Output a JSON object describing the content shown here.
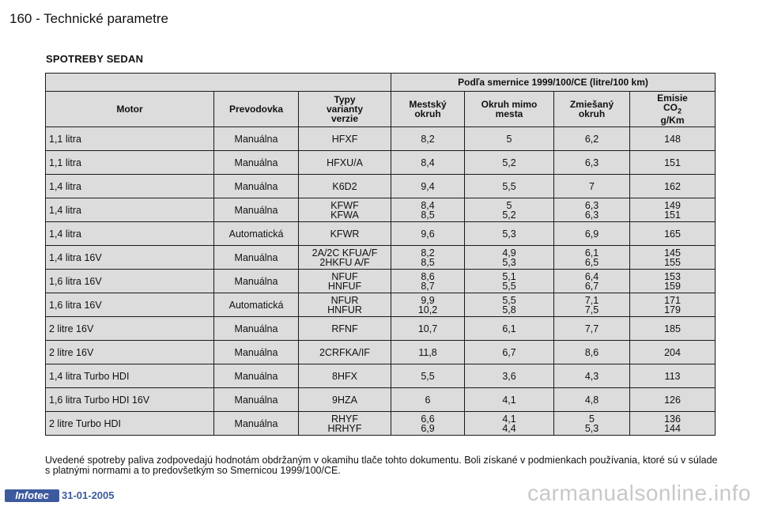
{
  "header": {
    "page": "160 - Technické parametre"
  },
  "section_title": "SPOTREBY SEDAN",
  "table": {
    "directive": "Podľa smernice 1999/100/CE (litre/100 km)",
    "columns": {
      "motor": "Motor",
      "gearbox": "Prevodovka",
      "variants": [
        "Typy",
        "varianty",
        "verzie"
      ],
      "urban": [
        "Mestský",
        "okruh"
      ],
      "extra_urban": [
        "Okruh mimo",
        "mesta"
      ],
      "combined": [
        "Zmiešaný",
        "okruh"
      ],
      "co2_label": "Emisie",
      "co2_main": "CO",
      "co2_sub": "2",
      "co2_unit": "g/Km"
    },
    "rows": [
      {
        "motor": "1,1 litra",
        "gearbox": "Manuálna",
        "variant": [
          "HFXF"
        ],
        "urban": [
          "8,2"
        ],
        "extra": [
          "5"
        ],
        "combined": [
          "6,2"
        ],
        "co2": [
          "148"
        ]
      },
      {
        "motor": "1,1 litra",
        "gearbox": "Manuálna",
        "variant": [
          "HFXU/A"
        ],
        "urban": [
          "8,4"
        ],
        "extra": [
          "5,2"
        ],
        "combined": [
          "6,3"
        ],
        "co2": [
          "151"
        ]
      },
      {
        "motor": "1,4 litra",
        "gearbox": "Manuálna",
        "variant": [
          "K6D2"
        ],
        "urban": [
          "9,4"
        ],
        "extra": [
          "5,5"
        ],
        "combined": [
          "7"
        ],
        "co2": [
          "162"
        ]
      },
      {
        "motor": "1,4 litra",
        "gearbox": "Manuálna",
        "variant": [
          "KFWF",
          "KFWA"
        ],
        "urban": [
          "8,4",
          "8,5"
        ],
        "extra": [
          "5",
          "5,2"
        ],
        "combined": [
          "6,3",
          "6,3"
        ],
        "co2": [
          "149",
          "151"
        ]
      },
      {
        "motor": "1,4 litra",
        "gearbox": "Automatická",
        "variant": [
          "KFWR"
        ],
        "urban": [
          "9,6"
        ],
        "extra": [
          "5,3"
        ],
        "combined": [
          "6,9"
        ],
        "co2": [
          "165"
        ]
      },
      {
        "motor": "1,4 litra 16V",
        "gearbox": "Manuálna",
        "variant": [
          "2A/2C KFUA/F",
          "2HKFU A/F"
        ],
        "urban": [
          "8,2",
          "8,5"
        ],
        "extra": [
          "4,9",
          "5,3"
        ],
        "combined": [
          "6,1",
          "6,5"
        ],
        "co2": [
          "145",
          "155"
        ]
      },
      {
        "motor": "1,6 litra 16V",
        "gearbox": "Manuálna",
        "variant": [
          "NFUF",
          "HNFUF"
        ],
        "urban": [
          "8,6",
          "8,7"
        ],
        "extra": [
          "5,1",
          "5,5"
        ],
        "combined": [
          "6,4",
          "6,7"
        ],
        "co2": [
          "153",
          "159"
        ]
      },
      {
        "motor": "1,6 litra 16V",
        "gearbox": "Automatická",
        "variant": [
          "NFUR",
          "HNFUR"
        ],
        "urban": [
          "9,9",
          "10,2"
        ],
        "extra": [
          "5,5",
          "5,8"
        ],
        "combined": [
          "7,1",
          "7,5"
        ],
        "co2": [
          "171",
          "179"
        ]
      },
      {
        "motor": "2 litre 16V",
        "gearbox": "Manuálna",
        "variant": [
          "RFNF"
        ],
        "urban": [
          "10,7"
        ],
        "extra": [
          "6,1"
        ],
        "combined": [
          "7,7"
        ],
        "co2": [
          "185"
        ]
      },
      {
        "motor": "2 litre 16V",
        "gearbox": "Manuálna",
        "variant": [
          "2CRFKA/IF"
        ],
        "urban": [
          "11,8"
        ],
        "extra": [
          "6,7"
        ],
        "combined": [
          "8,6"
        ],
        "co2": [
          "204"
        ]
      },
      {
        "motor": "1,4 litra Turbo HDI",
        "gearbox": "Manuálna",
        "variant": [
          "8HFX"
        ],
        "urban": [
          "5,5"
        ],
        "extra": [
          "3,6"
        ],
        "combined": [
          "4,3"
        ],
        "co2": [
          "113"
        ]
      },
      {
        "motor": "1,6 litra Turbo HDI 16V",
        "gearbox": "Manuálna",
        "variant": [
          "9HZA"
        ],
        "urban": [
          "6"
        ],
        "extra": [
          "4,1"
        ],
        "combined": [
          "4,8"
        ],
        "co2": [
          "126"
        ]
      },
      {
        "motor": "2 litre Turbo HDI",
        "gearbox": "Manuálna",
        "variant": [
          "RHYF",
          "HRHYF"
        ],
        "urban": [
          "6,6",
          "6,9"
        ],
        "extra": [
          "4,1",
          "4,4"
        ],
        "combined": [
          "5",
          "5,3"
        ],
        "co2": [
          "136",
          "144"
        ]
      }
    ]
  },
  "note": "Uvedené spotreby paliva zodpovedajú hodnotám obdržaným v okamihu tlače tohto dokumentu. Boli získané v podmienkach používania, ktoré sú v súlade s platnými normami a to predovšetkým so Smernicou 1999/100/CE.",
  "footer": {
    "logo": "Infotec",
    "date": "31-01-2005",
    "watermark": "carmanualsonline.info"
  }
}
